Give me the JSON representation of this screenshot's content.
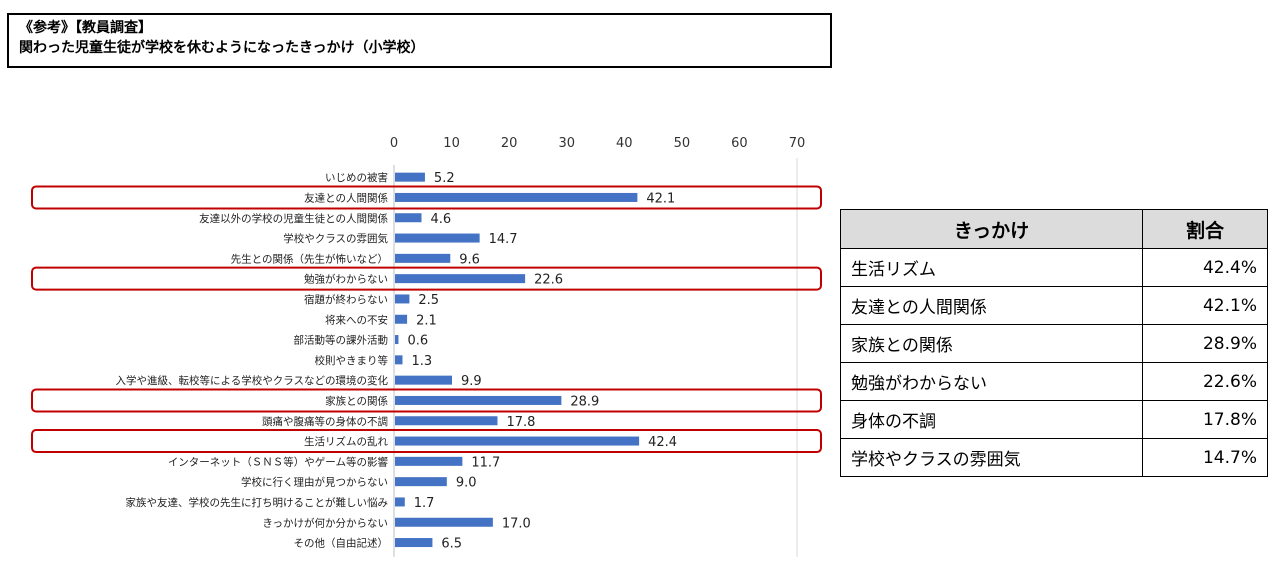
{
  "header": {
    "line1": "《参考》【教員調査】",
    "line2": "関わった児童生徒が学校を休むようになったきっかけ（小学校）"
  },
  "chart_data": {
    "type": "bar",
    "orientation": "horizontal",
    "categories": [
      "いじめの被害",
      "友達との人間関係",
      "友達以外の学校の児童生徒との人間関係",
      "学校やクラスの雰囲気",
      "先生との関係（先生が怖いなど）",
      "勉強がわからない",
      "宿題が終わらない",
      "将来への不安",
      "部活動等の課外活動",
      "校則やきまり等",
      "入学や進級、転校等による学校やクラスなどの環境の変化",
      "家族との関係",
      "頭痛や腹痛等の身体の不調",
      "生活リズムの乱れ",
      "インターネット（ＳＮＳ等）やゲーム等の影響",
      "学校に行く理由が見つからない",
      "家族や友達、学校の先生に打ち明けることが難しい悩み",
      "きっかけが何か分からない",
      "その他（自由記述）"
    ],
    "values": [
      5.2,
      42.1,
      4.6,
      14.7,
      9.6,
      22.6,
      2.5,
      2.1,
      0.6,
      1.3,
      9.9,
      28.9,
      17.8,
      42.4,
      11.7,
      9.0,
      1.7,
      17.0,
      6.5
    ],
    "value_labels": [
      "5.2",
      "42.1",
      "4.6",
      "14.7",
      "9.6",
      "22.6",
      "2.5",
      "2.1",
      "0.6",
      "1.3",
      "9.9",
      "28.9",
      "17.8",
      "42.4",
      "11.7",
      "9.0",
      "1.7",
      "17.0",
      "6.5"
    ],
    "xlim": [
      0,
      70
    ],
    "xticks": [
      "0",
      "10",
      "20",
      "30",
      "40",
      "50",
      "60",
      "70"
    ],
    "axis_position": "top",
    "grid": false,
    "highlighted_categories": [
      1,
      5,
      11,
      13
    ],
    "bar_color": "#4472c4",
    "highlight_color": "#c00000"
  },
  "summary_table": {
    "headers": [
      "きっかけ",
      "割合"
    ],
    "rows": [
      {
        "label": "生活リズム",
        "value": "42.4%"
      },
      {
        "label": "友達との人間関係",
        "value": "42.1%"
      },
      {
        "label": "家族との関係",
        "value": "28.9%"
      },
      {
        "label": "勉強がわからない",
        "value": "22.6%"
      },
      {
        "label": "身体の不調",
        "value": "17.8%"
      },
      {
        "label": "学校やクラスの雰囲気",
        "value": "14.7%"
      }
    ]
  }
}
